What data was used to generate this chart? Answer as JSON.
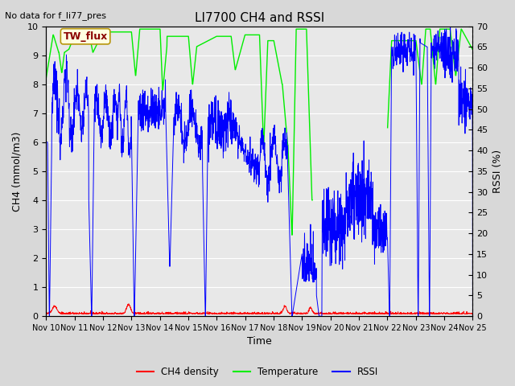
{
  "title": "LI7700 CH4 and RSSI",
  "top_left_text": "No data for f_li77_pres",
  "legend_label_text": "TW_flux",
  "xlabel": "Time",
  "ylabel_left": "CH4 (mmol/m3)",
  "ylabel_right": "RSSI (%)",
  "xlim": [
    0,
    15
  ],
  "ylim_left": [
    0.0,
    10.0
  ],
  "ylim_right": [
    0,
    70
  ],
  "yticks_left": [
    0.0,
    1.0,
    2.0,
    3.0,
    4.0,
    5.0,
    6.0,
    7.0,
    8.0,
    9.0,
    10.0
  ],
  "yticks_right": [
    0,
    5,
    10,
    15,
    20,
    25,
    30,
    35,
    40,
    45,
    50,
    55,
    60,
    65,
    70
  ],
  "xtick_labels": [
    "Nov 10",
    "Nov 11",
    "Nov 12",
    "Nov 13",
    "Nov 14",
    "Nov 15",
    "Nov 16",
    "Nov 17",
    "Nov 18",
    "Nov 19",
    "Nov 20",
    "Nov 21",
    "Nov 22",
    "Nov 23",
    "Nov 24",
    "Nov 25"
  ],
  "fig_bg_color": "#d8d8d8",
  "plot_bg_color": "#e8e8e8",
  "grid_color": "#ffffff",
  "ch4_color": "#ff0000",
  "temp_color": "#00ee00",
  "rssi_color": "#0000ff",
  "legend_entries": [
    "CH4 density",
    "Temperature",
    "RSSI"
  ]
}
